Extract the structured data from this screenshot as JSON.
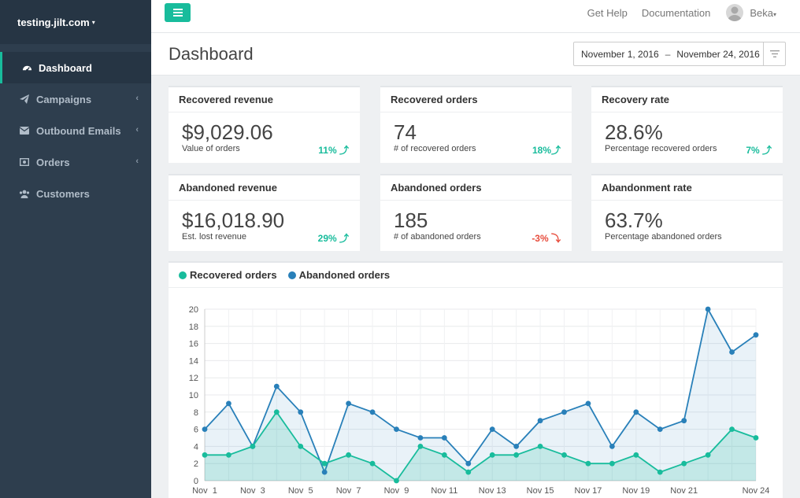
{
  "sidebar": {
    "site": "testing.jilt.com",
    "items": [
      {
        "label": "Dashboard"
      },
      {
        "label": "Campaigns"
      },
      {
        "label": "Outbound Emails"
      },
      {
        "label": "Orders"
      },
      {
        "label": "Customers"
      }
    ]
  },
  "topbar": {
    "get_help": "Get Help",
    "documentation": "Documentation",
    "user": "Beka"
  },
  "header": {
    "title": "Dashboard",
    "date_start": "November 1, 2016",
    "date_sep": "–",
    "date_end": "November 24, 2016"
  },
  "cards": [
    {
      "title": "Recovered revenue",
      "value": "$9,029.06",
      "sub": "Value of orders",
      "delta": "11% ⤴"
    },
    {
      "title": "Recovered orders",
      "value": "74",
      "sub": "# of recovered orders",
      "delta": "18%⤴"
    },
    {
      "title": "Recovery rate",
      "value": "28.6%",
      "sub": "Percentage recovered orders",
      "delta": "7% ⤴"
    },
    {
      "title": "Abandoned revenue",
      "value": "$16,018.90",
      "sub": "Est. lost revenue",
      "delta": "29% ⤴"
    },
    {
      "title": "Abandoned orders",
      "value": "185",
      "sub": "# of abandoned orders",
      "delta": "-3% ⤵"
    },
    {
      "title": "Abandonment rate",
      "value": "63.7%",
      "sub": "Percentage abandoned orders",
      "delta": ""
    }
  ],
  "colors": {
    "accent": "#18bc9c",
    "recovered": "#18bc9c",
    "abandoned": "#2980b9",
    "negative": "#e74c3c",
    "sidebar": "#2e3e4e"
  },
  "chart_data": {
    "type": "line",
    "legend": [
      "Recovered orders",
      "Abandoned orders"
    ],
    "x": [
      "Nov 1",
      "Nov 2",
      "Nov 3",
      "Nov 4",
      "Nov 5",
      "Nov 6",
      "Nov 7",
      "Nov 8",
      "Nov 9",
      "Nov 10",
      "Nov 11",
      "Nov 12",
      "Nov 13",
      "Nov 14",
      "Nov 15",
      "Nov 16",
      "Nov 17",
      "Nov 18",
      "Nov 19",
      "Nov 20",
      "Nov 21",
      "Nov 22",
      "Nov 23",
      "Nov 24"
    ],
    "x_tick_labels": [
      "Nov  1",
      "Nov  3",
      "Nov  5",
      "Nov  7",
      "Nov  9",
      "Nov 11",
      "Nov 13",
      "Nov 15",
      "Nov 17",
      "Nov 19",
      "Nov 21",
      "Nov 24"
    ],
    "y_ticks": [
      "0",
      "2",
      "4",
      "6",
      "8",
      "10",
      "12",
      "14",
      "16",
      "18",
      "20"
    ],
    "ylim": [
      0,
      20
    ],
    "series": [
      {
        "name": "Recovered orders",
        "values": [
          3,
          3,
          4,
          8,
          4,
          2,
          3,
          2,
          0,
          4,
          3,
          1,
          3,
          3,
          4,
          3,
          2,
          2,
          3,
          1,
          2,
          3,
          6,
          5
        ]
      },
      {
        "name": "Abandoned orders",
        "values": [
          6,
          9,
          4,
          11,
          8,
          1,
          9,
          8,
          6,
          5,
          5,
          2,
          6,
          4,
          7,
          8,
          9,
          4,
          8,
          6,
          7,
          20,
          15,
          17
        ]
      }
    ]
  }
}
